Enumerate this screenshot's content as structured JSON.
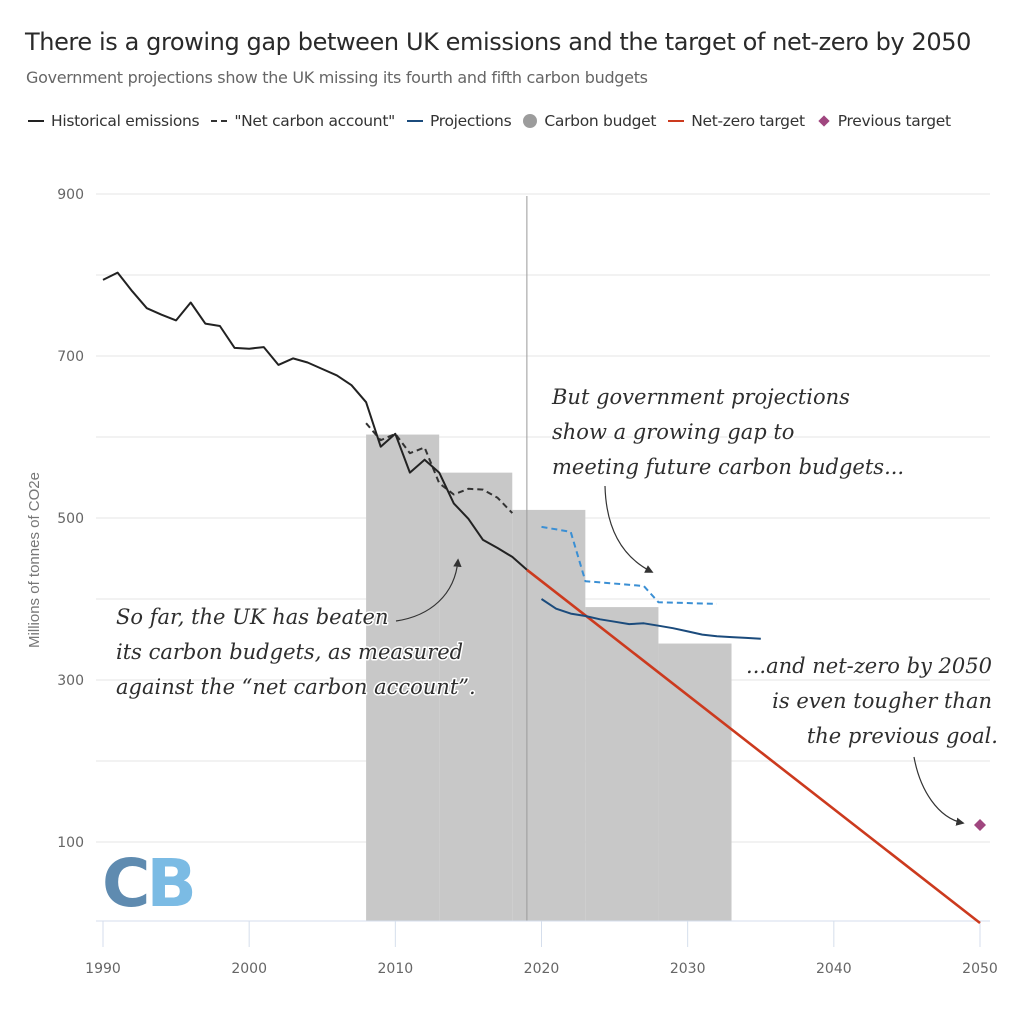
{
  "header": {
    "title": "There is a growing gap between UK emissions and the target of net-zero by 2050",
    "subtitle": "Government projections show the UK missing its fourth and fifth carbon budgets"
  },
  "legend": [
    {
      "label": "Historical emissions",
      "icon": "solid-line-icon",
      "color": "#222222"
    },
    {
      "label": "\"Net carbon account\"",
      "icon": "dashed-line-icon",
      "color": "#333333"
    },
    {
      "label": "Projections",
      "icon": "solid-line-icon",
      "color": "#1b4b7c"
    },
    {
      "label": "Carbon budget",
      "icon": "circle-icon",
      "color": "#c8c8c8"
    },
    {
      "label": "Net-zero target",
      "icon": "solid-line-icon",
      "color": "#cc3a1e"
    },
    {
      "label": "Previous target",
      "icon": "diamond-icon",
      "color": "#a0467f"
    }
  ],
  "logo": {
    "left": "C",
    "right": "B",
    "left_color": "#5f8bb0",
    "right_color": "#7bbbe4"
  },
  "chart_data": {
    "type": "line",
    "title": "There is a growing gap between UK emissions and the target of net-zero by 2050",
    "subtitle": "Government projections show the UK missing its fourth and fifth carbon budgets",
    "xlabel": "",
    "ylabel": "Millions of tonnes of CO2e",
    "xlim": [
      1990,
      2050
    ],
    "ylim": [
      0,
      900
    ],
    "x_ticks": [
      1990,
      2000,
      2010,
      2020,
      2030,
      2040,
      2050
    ],
    "y_ticks": [
      100,
      300,
      500,
      700,
      900
    ],
    "y_gridlines": [
      100,
      200,
      300,
      400,
      500,
      600,
      700,
      800,
      900
    ],
    "grid": true,
    "legend_position": "top",
    "reference_line_year": 2019,
    "series": [
      {
        "name": "Historical emissions",
        "style": "solid",
        "color": "#222222",
        "x": [
          1990,
          1991,
          1992,
          1993,
          1994,
          1995,
          1996,
          1997,
          1998,
          1999,
          2000,
          2001,
          2002,
          2003,
          2004,
          2005,
          2006,
          2007,
          2008,
          2009,
          2010,
          2011,
          2012,
          2013,
          2014,
          2015,
          2016,
          2017,
          2018,
          2019
        ],
        "y": [
          794,
          803,
          780,
          759,
          751,
          744,
          766,
          740,
          737,
          710,
          709,
          711,
          689,
          697,
          692,
          684,
          676,
          664,
          643,
          588,
          604,
          556,
          572,
          556,
          518,
          499,
          473,
          463,
          452,
          436
        ]
      },
      {
        "name": "\"Net carbon account\"",
        "style": "dashed",
        "color": "#333333",
        "x": [
          2008,
          2009,
          2010,
          2011,
          2012,
          2013,
          2014,
          2015,
          2016,
          2017,
          2018
        ],
        "y": [
          617,
          596,
          604,
          580,
          587,
          543,
          529,
          536,
          535,
          525,
          506
        ]
      },
      {
        "name": "Projections",
        "style": "solid",
        "color": "#1b4b7c",
        "x": [
          2020,
          2021,
          2022,
          2023,
          2024,
          2025,
          2026,
          2027,
          2028,
          2029,
          2030,
          2031,
          2032,
          2033,
          2034,
          2035
        ],
        "y": [
          400,
          388,
          382,
          379,
          375,
          372,
          369,
          370,
          367,
          364,
          360,
          356,
          354,
          353,
          352,
          351
        ]
      },
      {
        "name": "Projections (net carbon account)",
        "style": "dashed",
        "color": "#3a8fd4",
        "x": [
          2020,
          2022,
          2023,
          2027,
          2028,
          2032
        ],
        "y": [
          489,
          483,
          422,
          416,
          396,
          394
        ]
      },
      {
        "name": "Net-zero target",
        "style": "solid",
        "color": "#cc3a1e",
        "x": [
          2019,
          2050
        ],
        "y": [
          436,
          0
        ]
      }
    ],
    "carbon_budgets": [
      {
        "start": 2008,
        "end": 2012,
        "value": 603
      },
      {
        "start": 2013,
        "end": 2017,
        "value": 556
      },
      {
        "start": 2018,
        "end": 2022,
        "value": 510
      },
      {
        "start": 2023,
        "end": 2027,
        "value": 390
      },
      {
        "start": 2028,
        "end": 2032,
        "value": 345
      }
    ],
    "carbon_budget_color": "#c8c8c8",
    "previous_target": {
      "name": "Previous target",
      "x": 2050,
      "y": 121,
      "color": "#a0467f"
    },
    "annotations": [
      {
        "lines": [
          "But government projections",
          "show a growing gap to",
          "meeting future carbon budgets..."
        ],
        "align": "left"
      },
      {
        "lines": [
          "So far, the UK has beaten",
          "its carbon budgets, as measured",
          "against the “net carbon account”."
        ],
        "align": "left"
      },
      {
        "lines": [
          "...and net-zero by 2050",
          "is even tougher than",
          "the previous goal."
        ],
        "align": "right"
      }
    ]
  }
}
